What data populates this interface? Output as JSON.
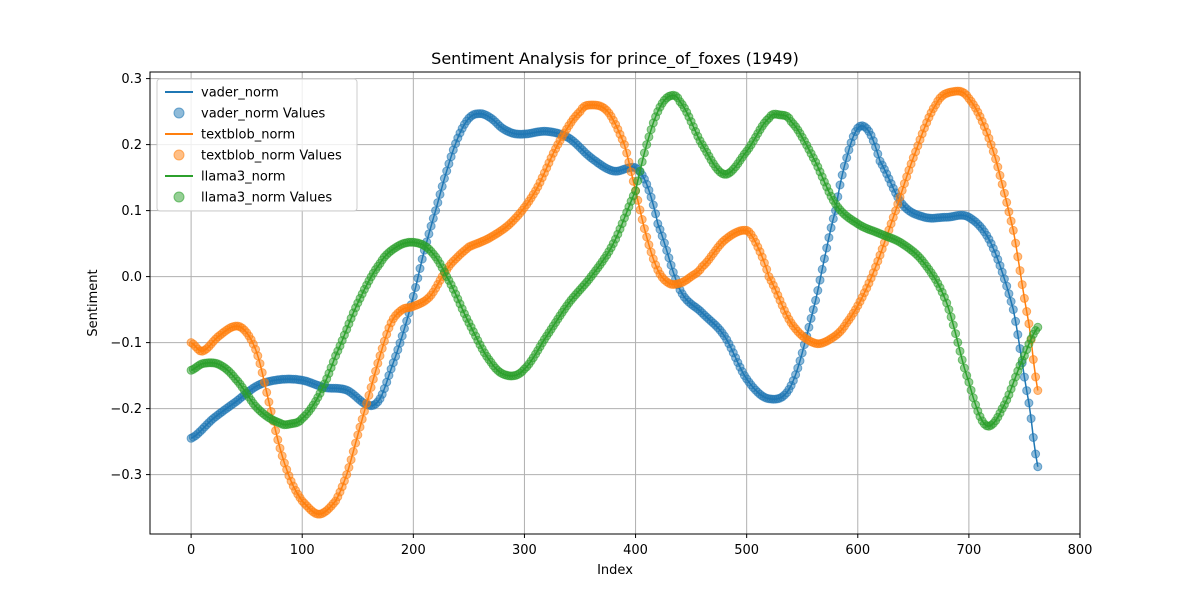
{
  "chart_data": {
    "type": "line",
    "title": "Sentiment Analysis for prince_of_foxes (1949)",
    "xlabel": "Index",
    "ylabel": "Sentiment",
    "xlim": [
      -37,
      800
    ],
    "ylim": [
      -0.39,
      0.31
    ],
    "x_ticks": [
      0,
      100,
      200,
      300,
      400,
      500,
      600,
      700,
      800
    ],
    "y_ticks": [
      -0.3,
      -0.2,
      -0.1,
      0.0,
      0.1,
      0.2,
      0.3
    ],
    "x_tick_labels": [
      "0",
      "100",
      "200",
      "300",
      "400",
      "500",
      "600",
      "700",
      "800"
    ],
    "y_tick_labels": [
      "−0.3",
      "−0.2",
      "−0.1",
      "0.0",
      "0.1",
      "0.2",
      "0.3"
    ],
    "grid": true,
    "legend_position": "top-left",
    "x_range": [
      0,
      763
    ],
    "series": [
      {
        "name": "vader_norm",
        "points_label": "vader_norm Values",
        "color": "#1f77b4",
        "x": [
          0,
          20,
          40,
          60,
          80,
          100,
          120,
          140,
          160,
          170,
          180,
          190,
          200,
          210,
          220,
          230,
          240,
          250,
          260,
          270,
          280,
          290,
          300,
          320,
          340,
          360,
          380,
          400,
          410,
          420,
          440,
          460,
          480,
          500,
          520,
          540,
          560,
          580,
          590,
          600,
          610,
          620,
          640,
          660,
          680,
          700,
          720,
          740,
          755,
          763
        ],
        "y": [
          -0.245,
          -0.215,
          -0.19,
          -0.165,
          -0.156,
          -0.157,
          -0.168,
          -0.172,
          -0.195,
          -0.185,
          -0.14,
          -0.09,
          -0.03,
          0.04,
          0.1,
          0.16,
          0.21,
          0.24,
          0.247,
          0.24,
          0.225,
          0.217,
          0.216,
          0.22,
          0.21,
          0.18,
          0.16,
          0.165,
          0.14,
          0.08,
          -0.02,
          -0.055,
          -0.09,
          -0.155,
          -0.185,
          -0.165,
          -0.05,
          0.1,
          0.18,
          0.225,
          0.22,
          0.175,
          0.11,
          0.09,
          0.09,
          0.09,
          0.05,
          -0.05,
          -0.2,
          -0.295
        ]
      },
      {
        "name": "textblob_norm",
        "points_label": "textblob_norm Values",
        "color": "#ff7f0e",
        "x": [
          0,
          10,
          25,
          40,
          50,
          60,
          70,
          80,
          90,
          100,
          115,
          130,
          140,
          150,
          160,
          170,
          180,
          190,
          200,
          215,
          230,
          240,
          250,
          270,
          290,
          310,
          330,
          350,
          360,
          375,
          390,
          400,
          410,
          420,
          430,
          440,
          450,
          460,
          480,
          500,
          510,
          520,
          540,
          560,
          575,
          590,
          610,
          630,
          650,
          670,
          685,
          700,
          720,
          740,
          755,
          763
        ],
        "y": [
          -0.1,
          -0.113,
          -0.09,
          -0.075,
          -0.085,
          -0.12,
          -0.19,
          -0.26,
          -0.31,
          -0.34,
          -0.36,
          -0.34,
          -0.3,
          -0.24,
          -0.18,
          -0.12,
          -0.07,
          -0.05,
          -0.045,
          -0.03,
          0.01,
          0.03,
          0.045,
          0.06,
          0.085,
          0.13,
          0.2,
          0.25,
          0.26,
          0.25,
          0.2,
          0.13,
          0.06,
          0.01,
          -0.01,
          -0.01,
          0.0,
          0.015,
          0.055,
          0.07,
          0.045,
          0.0,
          -0.07,
          -0.1,
          -0.095,
          -0.07,
          -0.01,
          0.08,
          0.18,
          0.26,
          0.28,
          0.27,
          0.2,
          0.07,
          -0.08,
          -0.18
        ]
      },
      {
        "name": "llama3_norm",
        "points_label": "llama3_norm Values",
        "color": "#2ca02c",
        "x": [
          0,
          10,
          25,
          40,
          60,
          80,
          90,
          100,
          115,
          130,
          150,
          170,
          185,
          200,
          215,
          230,
          250,
          270,
          285,
          300,
          320,
          340,
          360,
          380,
          400,
          410,
          420,
          430,
          440,
          460,
          480,
          500,
          520,
          530,
          540,
          560,
          580,
          600,
          620,
          640,
          660,
          680,
          700,
          715,
          730,
          750,
          763
        ],
        "y": [
          -0.142,
          -0.132,
          -0.133,
          -0.155,
          -0.2,
          -0.222,
          -0.223,
          -0.215,
          -0.18,
          -0.12,
          -0.04,
          0.02,
          0.045,
          0.052,
          0.04,
          0.0,
          -0.07,
          -0.13,
          -0.15,
          -0.14,
          -0.09,
          -0.04,
          0.0,
          0.05,
          0.13,
          0.2,
          0.25,
          0.273,
          0.265,
          0.2,
          0.155,
          0.19,
          0.24,
          0.245,
          0.235,
          0.18,
          0.11,
          0.08,
          0.065,
          0.05,
          0.02,
          -0.04,
          -0.16,
          -0.225,
          -0.2,
          -0.12,
          -0.075
        ]
      }
    ]
  }
}
